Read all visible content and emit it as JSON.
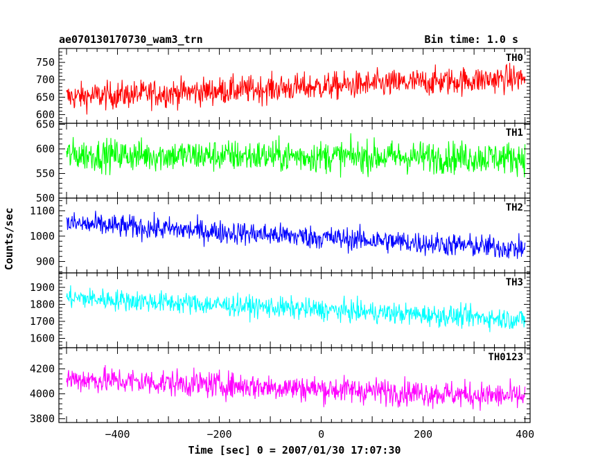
{
  "header": {
    "title": "ae070130170730_wam3_trn",
    "bin_time": "Bin time: 1.0 s"
  },
  "chart_data": {
    "type": "line",
    "x_range": [
      -515,
      410
    ],
    "x_ticks": [
      -400,
      -200,
      0,
      200,
      400
    ],
    "x_tick_labels": [
      "−400",
      "−200",
      "0",
      "200",
      "400"
    ],
    "x_label": "Time [sec] 0 = 2007/01/30 17:07:30",
    "y_label": "Counts/sec",
    "panels": [
      {
        "name": "TH0",
        "color": "#ff0000",
        "ylim": [
          575,
          790
        ],
        "y_ticks": [
          600,
          650,
          700,
          750
        ],
        "y_tick_labels": [
          "600",
          "650",
          "700",
          "750"
        ],
        "data_x_range": [
          -500,
          400
        ],
        "trend": [
          650,
          705
        ],
        "noise": 33
      },
      {
        "name": "TH1",
        "color": "#00ff00",
        "ylim": [
          500,
          652
        ],
        "y_ticks": [
          500,
          550,
          600,
          650
        ],
        "y_tick_labels": [
          "500",
          "550",
          "600",
          "650"
        ],
        "data_x_range": [
          -500,
          400
        ],
        "trend": [
          588,
          582
        ],
        "noise": 27
      },
      {
        "name": "TH2",
        "color": "#0000ff",
        "ylim": [
          855,
          1150
        ],
        "y_ticks": [
          900,
          1000,
          1100
        ],
        "y_tick_labels": [
          "900",
          "1000",
          "1100"
        ],
        "data_x_range": [
          -500,
          400
        ],
        "trend": [
          1050,
          950
        ],
        "noise": 38
      },
      {
        "name": "TH3",
        "color": "#00ffff",
        "ylim": [
          1545,
          1985
        ],
        "y_ticks": [
          1600,
          1700,
          1800,
          1900
        ],
        "y_tick_labels": [
          "1600",
          "1700",
          "1800",
          "1900"
        ],
        "data_x_range": [
          -500,
          400
        ],
        "trend": [
          1840,
          1710
        ],
        "noise": 52
      },
      {
        "name": "TH0123",
        "color": "#ff00ff",
        "ylim": [
          3770,
          4370
        ],
        "y_ticks": [
          3800,
          4000,
          4200
        ],
        "y_tick_labels": [
          "3800",
          "4000",
          "4200"
        ],
        "data_x_range": [
          -500,
          400
        ],
        "trend": [
          4120,
          3975
        ],
        "noise": 88
      }
    ]
  }
}
